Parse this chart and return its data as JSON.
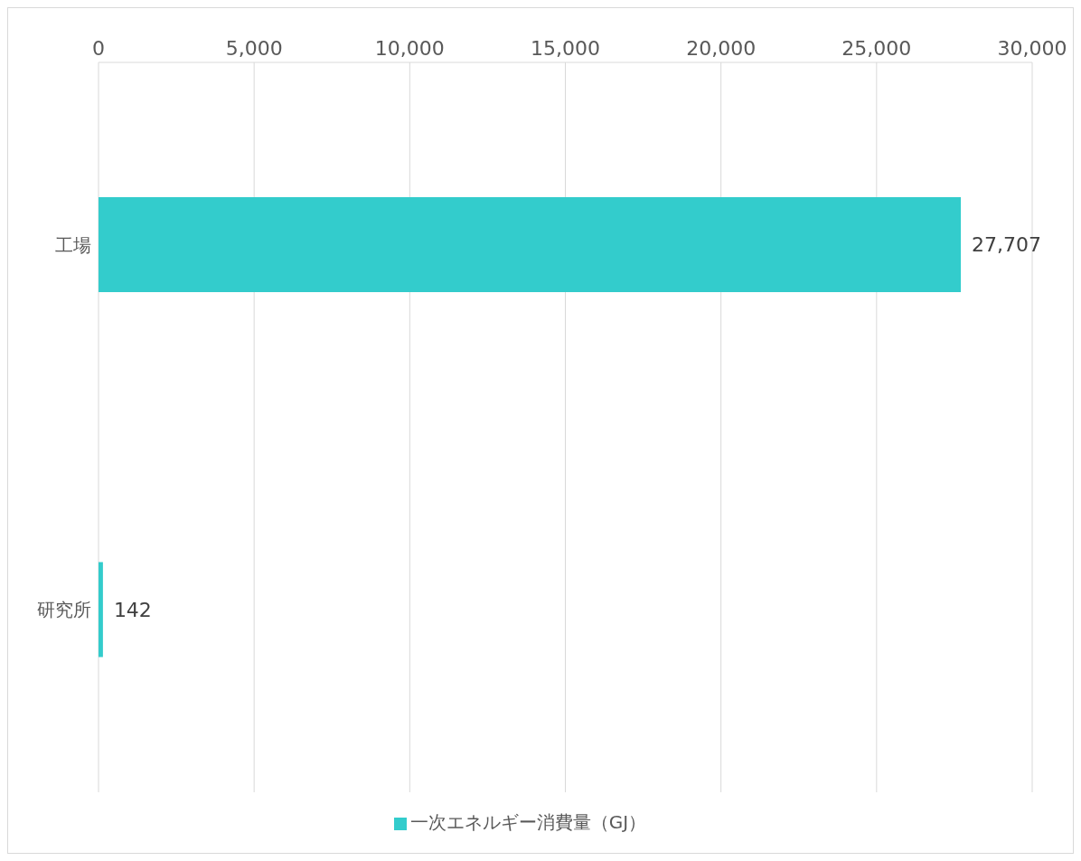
{
  "chart_data": {
    "type": "bar",
    "orientation": "horizontal",
    "categories": [
      "工場",
      "研究所"
    ],
    "series": [
      {
        "name": "一次エネルギー消費量（GJ）",
        "color": "#33cccc",
        "values": [
          27707,
          142
        ],
        "value_labels": [
          "27,707",
          "142"
        ]
      }
    ],
    "xlim": [
      0,
      30000
    ],
    "xticks": [
      0,
      {
        "value": 5000,
        "label": "5,000"
      },
      {
        "value": 10000,
        "label": "10,000"
      },
      {
        "value": 15000,
        "label": "15,000"
      },
      {
        "value": 20000,
        "label": "20,000"
      },
      {
        "value": 25000,
        "label": "25,000"
      },
      {
        "value": 30000,
        "label": "30,000"
      }
    ],
    "grid": "x",
    "legend": "bottom"
  }
}
